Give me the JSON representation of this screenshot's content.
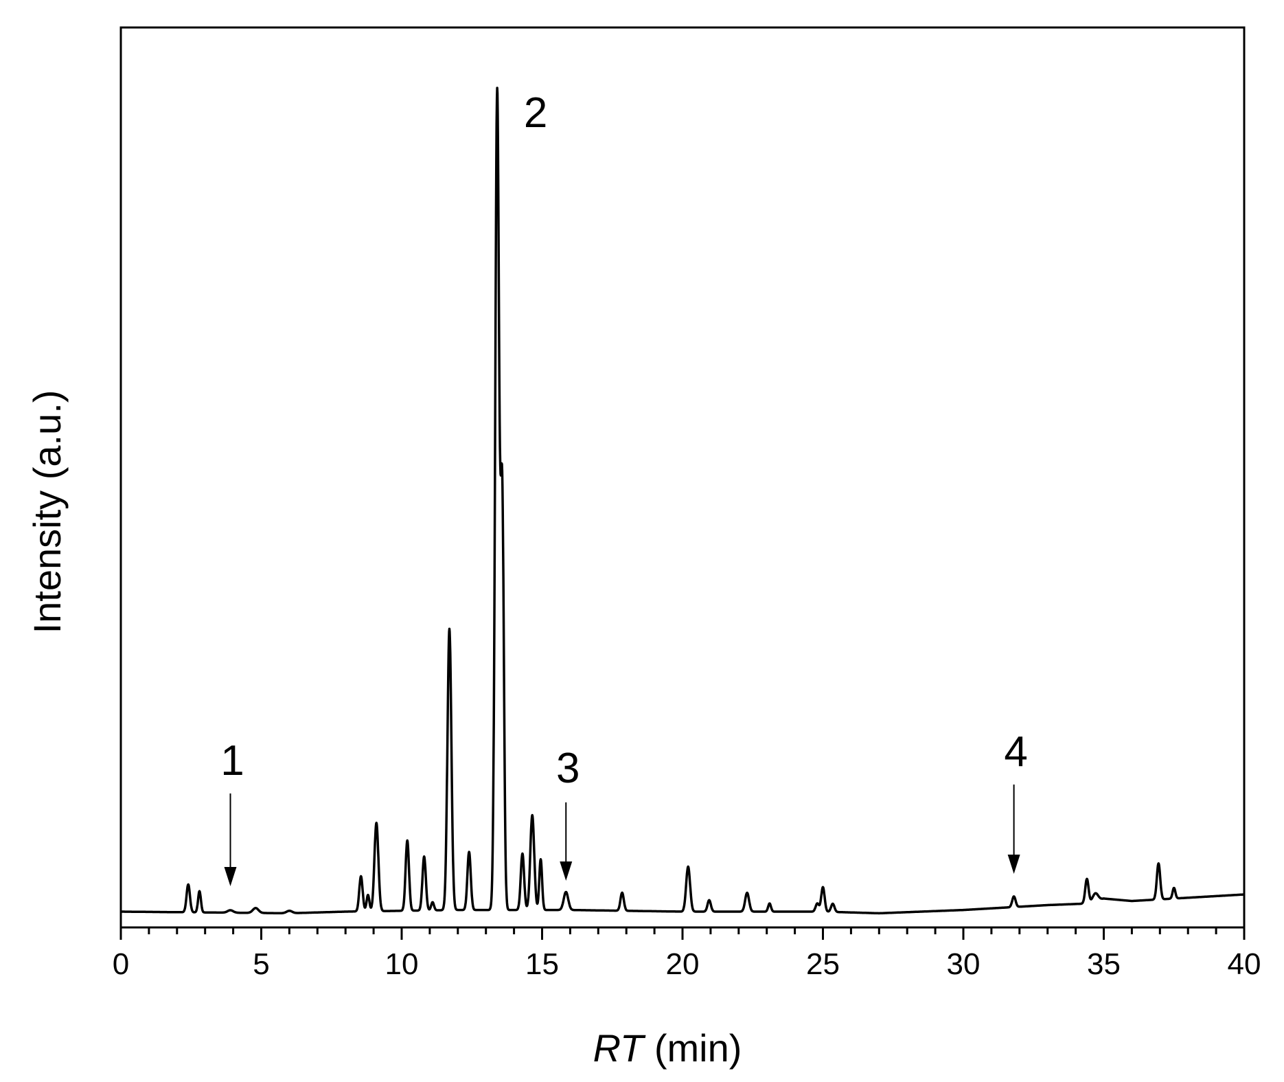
{
  "chart_data": {
    "type": "line",
    "xlabel_italic": "RT",
    "xlabel_rest": " (min)",
    "ylabel": "Intensity (a.u.)",
    "xlim": [
      0,
      40
    ],
    "ylim": [
      -0.02,
      1.0
    ],
    "x_ticks": [
      0,
      5,
      10,
      15,
      20,
      25,
      30,
      35,
      40
    ],
    "x_tick_labels": [
      "0",
      "5",
      "10",
      "15",
      "20",
      "25",
      "30",
      "35",
      "40"
    ],
    "grid": false,
    "legend": "none",
    "line_color": "#000000",
    "baseline": [
      [
        0,
        0.0
      ],
      [
        6,
        -0.002
      ],
      [
        8,
        0.0
      ],
      [
        12,
        0.002
      ],
      [
        16,
        0.002
      ],
      [
        20,
        0.0
      ],
      [
        25,
        0.0
      ],
      [
        27,
        -0.002
      ],
      [
        30,
        0.002
      ],
      [
        33,
        0.008
      ],
      [
        34.5,
        0.01
      ],
      [
        35,
        0.016
      ],
      [
        36,
        0.013
      ],
      [
        38,
        0.017
      ],
      [
        40,
        0.021
      ]
    ],
    "peaks": [
      {
        "rt": 2.4,
        "height": 0.034,
        "width": 0.06
      },
      {
        "rt": 2.8,
        "height": 0.026,
        "width": 0.05
      },
      {
        "rt": 3.9,
        "height": 0.003,
        "width": 0.1
      },
      {
        "rt": 4.8,
        "height": 0.006,
        "width": 0.1
      },
      {
        "rt": 6.0,
        "height": 0.003,
        "width": 0.1
      },
      {
        "rt": 8.55,
        "height": 0.043,
        "width": 0.06
      },
      {
        "rt": 8.8,
        "height": 0.02,
        "width": 0.05
      },
      {
        "rt": 9.1,
        "height": 0.108,
        "width": 0.07
      },
      {
        "rt": 10.2,
        "height": 0.086,
        "width": 0.06
      },
      {
        "rt": 10.8,
        "height": 0.066,
        "width": 0.06
      },
      {
        "rt": 11.1,
        "height": 0.01,
        "width": 0.05
      },
      {
        "rt": 11.7,
        "height": 0.344,
        "width": 0.07
      },
      {
        "rt": 12.4,
        "height": 0.071,
        "width": 0.06
      },
      {
        "rt": 13.4,
        "height": 1.0,
        "width": 0.07
      },
      {
        "rt": 13.58,
        "height": 0.5,
        "width": 0.06
      },
      {
        "rt": 14.3,
        "height": 0.069,
        "width": 0.06
      },
      {
        "rt": 14.65,
        "height": 0.116,
        "width": 0.07
      },
      {
        "rt": 14.95,
        "height": 0.062,
        "width": 0.05
      },
      {
        "rt": 15.85,
        "height": 0.022,
        "width": 0.08
      },
      {
        "rt": 17.85,
        "height": 0.022,
        "width": 0.06
      },
      {
        "rt": 20.2,
        "height": 0.055,
        "width": 0.07
      },
      {
        "rt": 20.95,
        "height": 0.014,
        "width": 0.06
      },
      {
        "rt": 22.3,
        "height": 0.023,
        "width": 0.07
      },
      {
        "rt": 23.1,
        "height": 0.01,
        "width": 0.05
      },
      {
        "rt": 24.8,
        "height": 0.01,
        "width": 0.06
      },
      {
        "rt": 25.0,
        "height": 0.03,
        "width": 0.06
      },
      {
        "rt": 25.35,
        "height": 0.01,
        "width": 0.06
      },
      {
        "rt": 31.8,
        "height": 0.013,
        "width": 0.06
      },
      {
        "rt": 34.4,
        "height": 0.03,
        "width": 0.06
      },
      {
        "rt": 34.7,
        "height": 0.01,
        "width": 0.1
      },
      {
        "rt": 36.95,
        "height": 0.044,
        "width": 0.06
      },
      {
        "rt": 37.5,
        "height": 0.013,
        "width": 0.05
      }
    ],
    "annotations": [
      {
        "label": "1",
        "rt": 3.9,
        "arrow": true
      },
      {
        "label": "2",
        "rt": 13.4,
        "arrow": false
      },
      {
        "label": "3",
        "rt": 15.85,
        "arrow": true
      },
      {
        "label": "4",
        "rt": 31.8,
        "arrow": true
      }
    ]
  }
}
